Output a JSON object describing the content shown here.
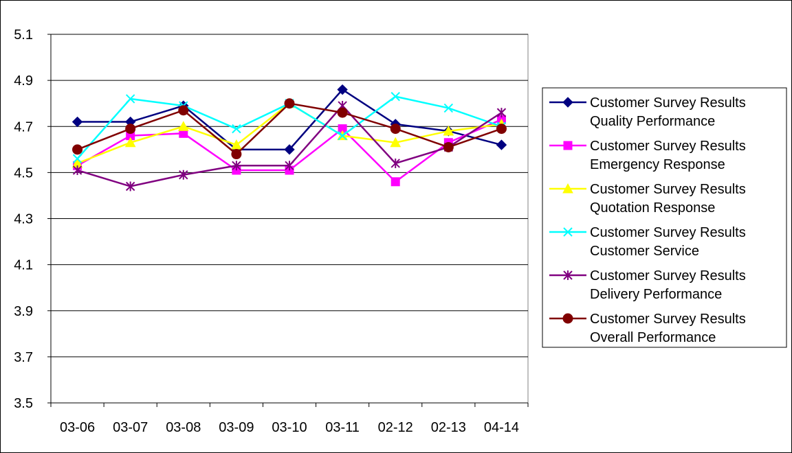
{
  "chart_data": {
    "type": "line",
    "categories": [
      "03-06",
      "03-07",
      "03-08",
      "03-09",
      "03-10",
      "03-11",
      "02-12",
      "02-13",
      "04-14"
    ],
    "ylim": [
      3.5,
      5.1
    ],
    "yticks": [
      "3.5",
      "3.7",
      "3.9",
      "4.1",
      "4.3",
      "4.5",
      "4.7",
      "4.9",
      "5.1"
    ],
    "grid": true,
    "legend_position": "right",
    "series": [
      {
        "name_line1": "Customer Survey Results",
        "name_line2": "Quality Performance",
        "color": "#000080",
        "marker": "diamond",
        "values": [
          4.72,
          4.72,
          4.79,
          4.6,
          4.6,
          4.86,
          4.71,
          4.68,
          4.62
        ]
      },
      {
        "name_line1": "Customer Survey Results",
        "name_line2": "Emergency Response",
        "color": "#FF00FF",
        "marker": "square",
        "values": [
          4.53,
          4.66,
          4.67,
          4.51,
          4.51,
          4.69,
          4.46,
          4.63,
          4.73
        ]
      },
      {
        "name_line1": "Customer Survey Results",
        "name_line2": "Quotation Response",
        "color": "#FFFF00",
        "marker": "triangle",
        "values": [
          4.54,
          4.63,
          4.7,
          4.62,
          4.8,
          4.66,
          4.63,
          4.68,
          4.71
        ]
      },
      {
        "name_line1": "Customer Survey Results",
        "name_line2": "Customer Service",
        "color": "#00FFFF",
        "marker": "x",
        "values": [
          4.56,
          4.82,
          4.79,
          4.69,
          4.8,
          4.66,
          4.83,
          4.78,
          4.7
        ]
      },
      {
        "name_line1": "Customer Survey Results",
        "name_line2": "Delivery Performance",
        "color": "#800080",
        "marker": "star",
        "values": [
          4.51,
          4.44,
          4.49,
          4.53,
          4.53,
          4.79,
          4.54,
          4.61,
          4.76
        ]
      },
      {
        "name_line1": "Customer Survey Results",
        "name_line2": "Overall Performance",
        "color": "#800000",
        "marker": "circle",
        "values": [
          4.6,
          4.69,
          4.77,
          4.58,
          4.8,
          4.76,
          4.69,
          4.61,
          4.69
        ]
      }
    ]
  }
}
